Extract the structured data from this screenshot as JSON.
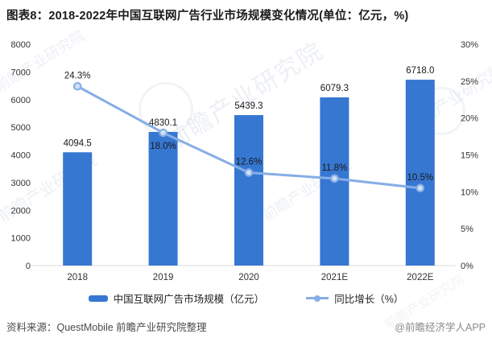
{
  "page": {
    "title": "图表8：2018-2022年中国互联网广告行业市场规模变化情况(单位：亿元，%)"
  },
  "chart_data": {
    "type": "bar+line",
    "categories": [
      "2018",
      "2019",
      "2020",
      "2021E",
      "2022E"
    ],
    "series": [
      {
        "name": "中国互联网广告市场规模（亿元）",
        "type": "bar",
        "axis": "left",
        "color": "#3677d1",
        "values": [
          4094.5,
          4830.1,
          5439.3,
          6079.3,
          6718.0
        ],
        "labels": [
          "4094.5",
          "4830.1",
          "5439.3",
          "6079.3",
          "6718.0"
        ]
      },
      {
        "name": "同比增长（%）",
        "type": "line",
        "axis": "right",
        "color": "#86aee6",
        "marker_fill": "#cfe0f5",
        "values": [
          24.3,
          18.0,
          12.6,
          11.8,
          10.5
        ],
        "labels": [
          "24.3%",
          "18.0%",
          "12.6%",
          "11.8%",
          "10.5%"
        ]
      }
    ],
    "left_axis": {
      "min": 0,
      "max": 8000,
      "step": 1000,
      "tick_labels": [
        "0",
        "1000",
        "2000",
        "3000",
        "4000",
        "5000",
        "6000",
        "7000",
        "8000"
      ]
    },
    "right_axis": {
      "min": 0,
      "max": 30,
      "step": 5,
      "tick_labels": [
        "0%",
        "5%",
        "10%",
        "15%",
        "20%",
        "25%",
        "30%"
      ]
    },
    "grid": false,
    "legend_position": "bottom",
    "axis_line_color": "#d9d9d9",
    "label_color": "#1a1a1a",
    "tick_color": "#333333"
  },
  "footer": {
    "source": "资料来源：QuestMobile 前瞻产业研究院整理",
    "credit": "@前瞻经济学人APP"
  },
  "watermark": {
    "text": "前瞻产业研究院"
  }
}
